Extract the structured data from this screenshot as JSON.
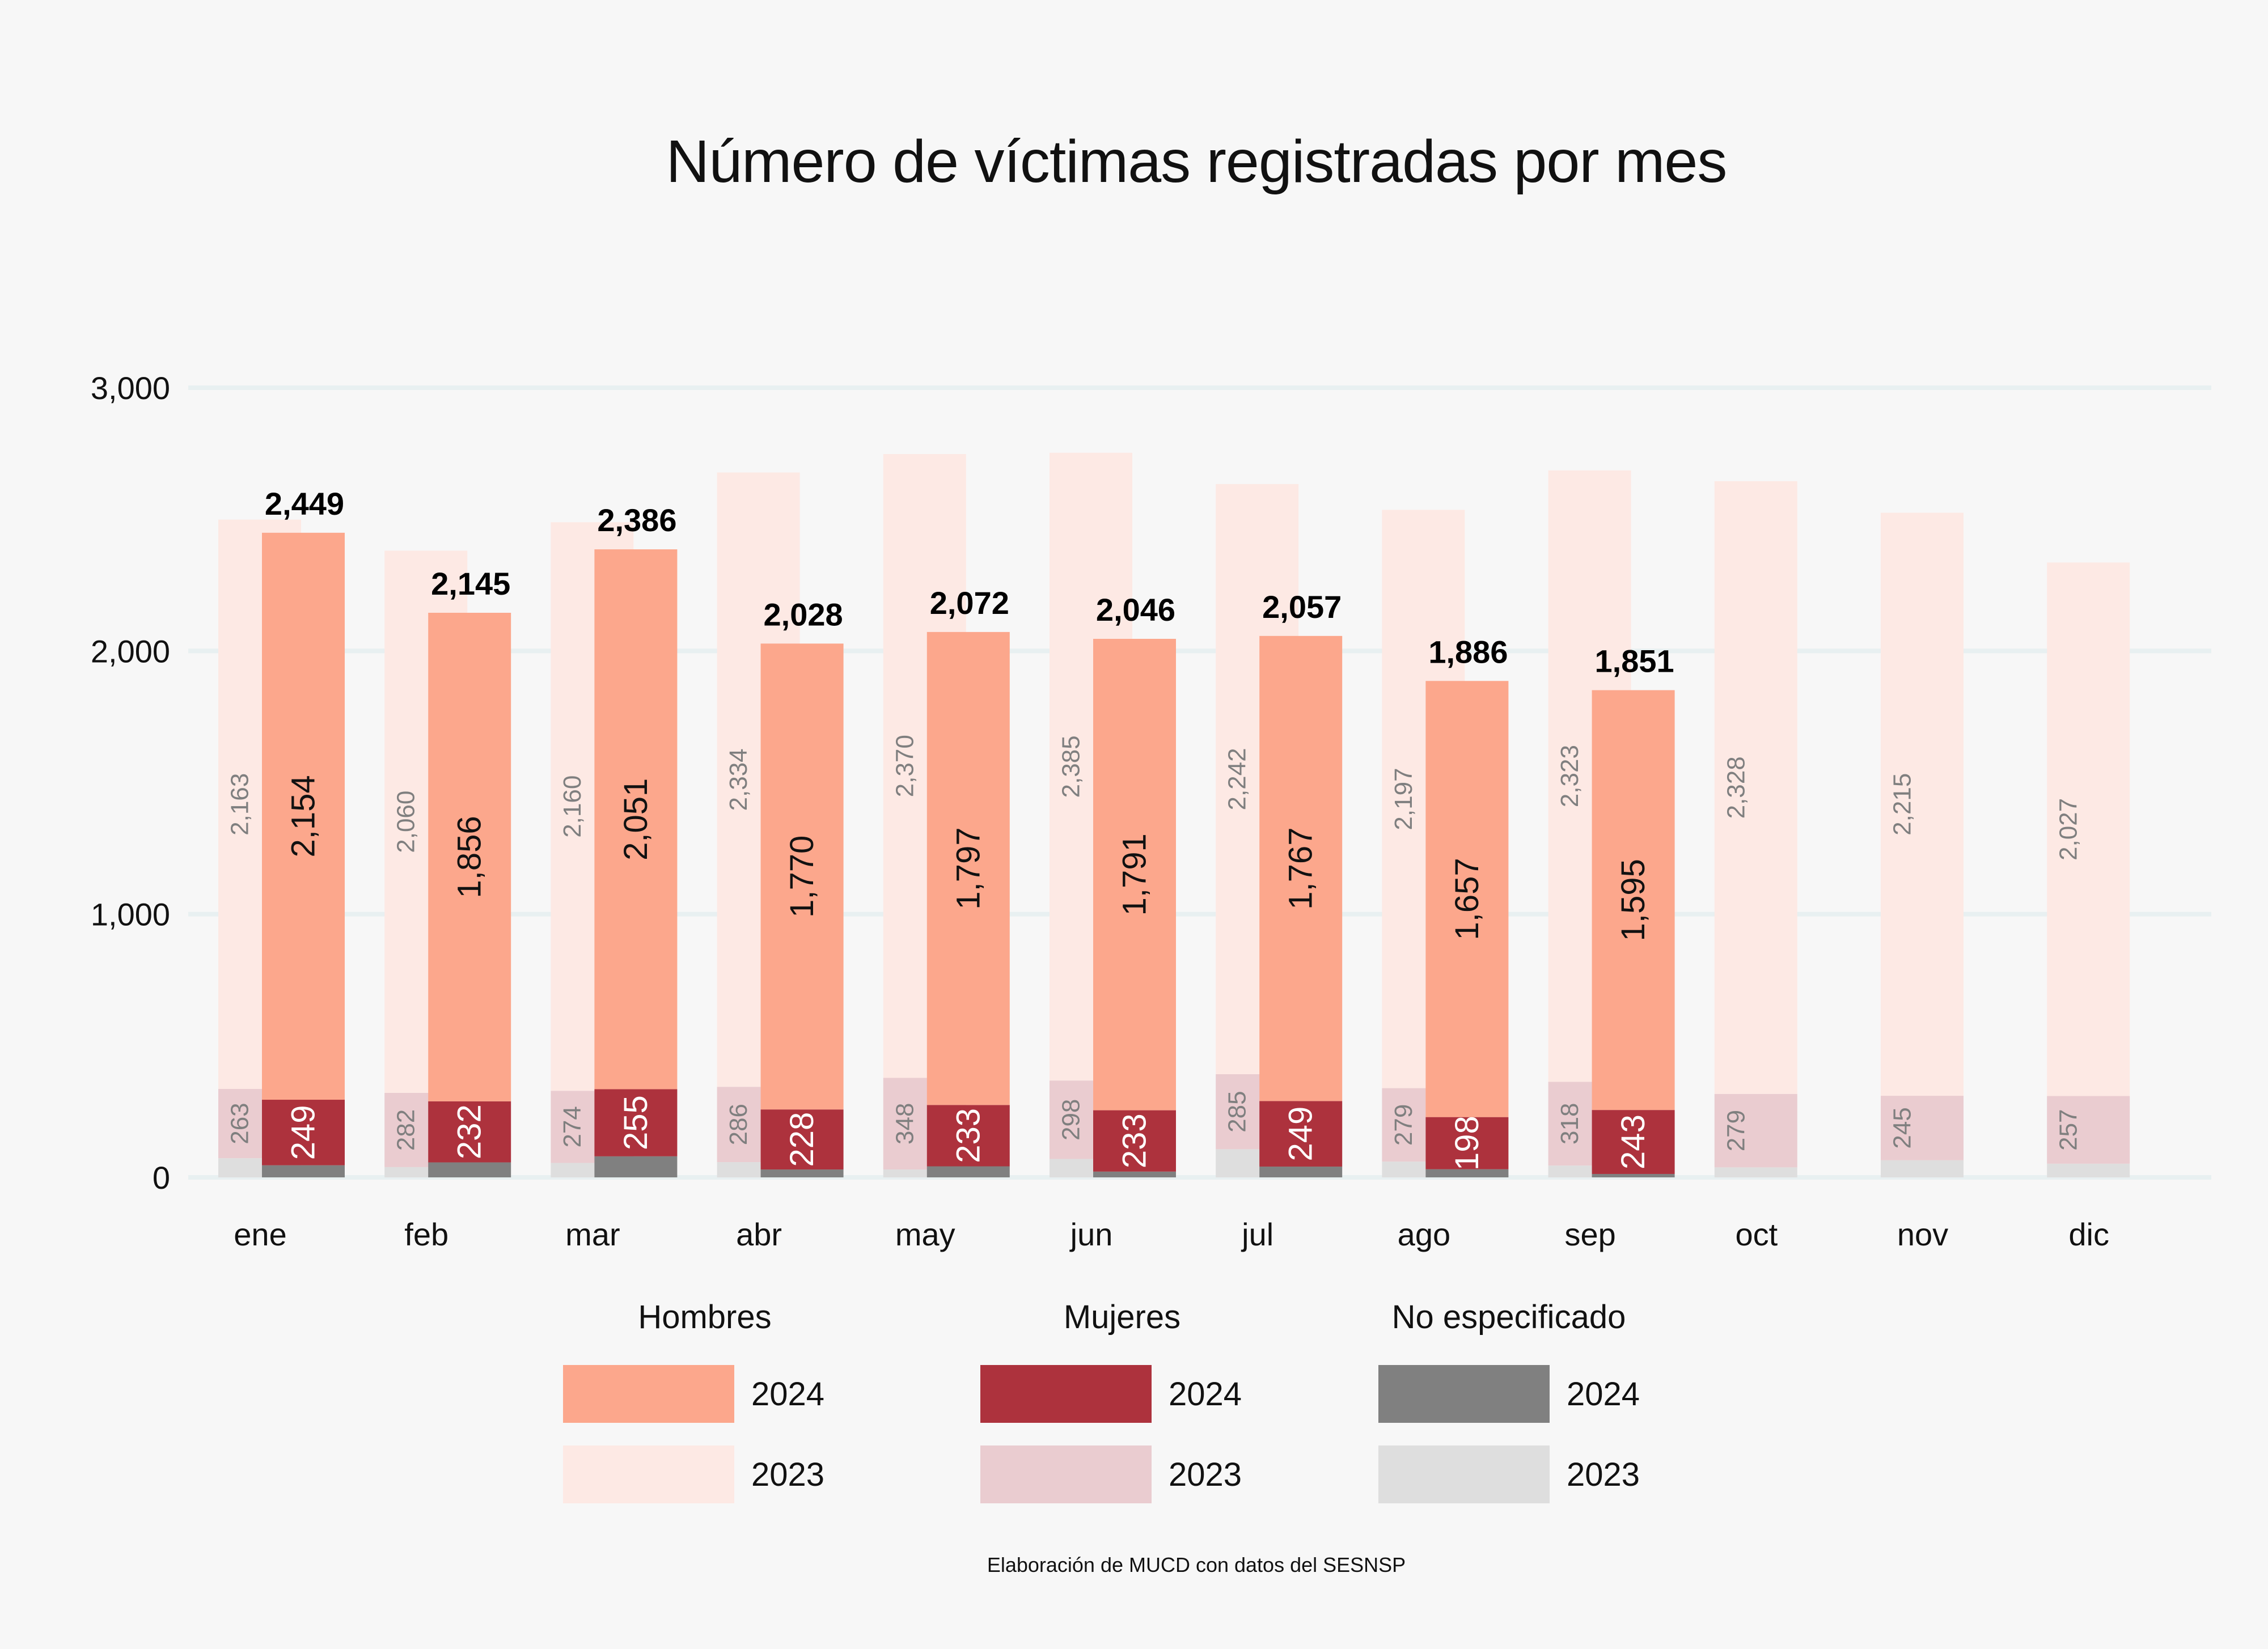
{
  "chart_data": {
    "type": "bar",
    "title": "Número de víctimas registradas por mes",
    "caption": "Elaboración de MUCD con datos del SESNSP",
    "xlabel": "",
    "ylabel": "",
    "ylim": [
      0,
      3000
    ],
    "yticks": [
      0,
      1000,
      2000,
      3000
    ],
    "ytick_labels": [
      "0",
      "1,000",
      "2,000",
      "3,000"
    ],
    "grid": true,
    "stacked": true,
    "categories": [
      "ene",
      "feb",
      "mar",
      "abr",
      "may",
      "jun",
      "jul",
      "ago",
      "sep",
      "oct",
      "nov",
      "dic"
    ],
    "series": [
      {
        "name": "Hombres 2024",
        "group": "Hombres",
        "year": "2024",
        "color": "#fca78c",
        "values": [
          2154,
          1856,
          2051,
          1770,
          1797,
          1791,
          1767,
          1657,
          1595,
          null,
          null,
          null
        ]
      },
      {
        "name": "Mujeres 2024",
        "group": "Mujeres",
        "year": "2024",
        "color": "#ad323d",
        "values": [
          249,
          232,
          255,
          228,
          233,
          233,
          249,
          198,
          243,
          null,
          null,
          null
        ]
      },
      {
        "name": "No especificado 2024",
        "group": "No especificado",
        "year": "2024",
        "color": "#808080",
        "values": [
          46,
          57,
          80,
          30,
          42,
          22,
          41,
          31,
          13,
          null,
          null,
          null
        ]
      },
      {
        "name": "Hombres 2023",
        "group": "Hombres",
        "year": "2023",
        "color": "#fde9e4",
        "values": [
          2163,
          2060,
          2160,
          2334,
          2370,
          2385,
          2242,
          2197,
          2323,
          2328,
          2215,
          2027
        ]
      },
      {
        "name": "Mujeres 2023",
        "group": "Mujeres",
        "year": "2023",
        "color": "#eaccd0",
        "values": [
          263,
          282,
          274,
          286,
          348,
          298,
          285,
          279,
          318,
          279,
          245,
          257
        ]
      },
      {
        "name": "No especificado 2023",
        "group": "No especificado",
        "year": "2023",
        "color": "#dedede",
        "values": [
          73,
          39,
          55,
          58,
          30,
          70,
          107,
          60,
          45,
          38,
          65,
          52
        ]
      }
    ],
    "totals_2024": [
      2449,
      2145,
      2386,
      2028,
      2072,
      2046,
      2057,
      1886,
      1851,
      null,
      null,
      null
    ],
    "total_labels_2024": [
      "2,449",
      "2,145",
      "2,386",
      "2,028",
      "2,072",
      "2,046",
      "2,057",
      "1,886",
      "1,851",
      "",
      "",
      ""
    ],
    "legend": {
      "placement": "bottom",
      "groups": [
        {
          "title": "Hombres",
          "items": [
            {
              "label": "2024",
              "color": "#fca78c"
            },
            {
              "label": "2023",
              "color": "#fde9e4"
            }
          ]
        },
        {
          "title": "Mujeres",
          "items": [
            {
              "label": "2024",
              "color": "#ad323d"
            },
            {
              "label": "2023",
              "color": "#eaccd0"
            }
          ]
        },
        {
          "title": "No especificado",
          "items": [
            {
              "label": "2024",
              "color": "#808080"
            },
            {
              "label": "2023",
              "color": "#dedede"
            }
          ]
        }
      ]
    },
    "label_colors": {
      "hombres_2024": "#111111",
      "mujeres_2024": "#ffffff",
      "label_2023": "#7f7f7f",
      "total": "#000000",
      "gridline": "#e8f0f1"
    }
  }
}
